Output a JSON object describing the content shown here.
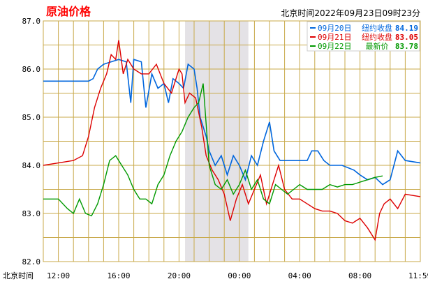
{
  "title": "原油价格",
  "timestamp": "北京时间2022年09月23日09时23分",
  "x_axis_prefix": "北京时间",
  "chart_data": {
    "type": "line",
    "ylim": [
      82.0,
      87.0
    ],
    "y_ticks": [
      "87.0",
      "86.0",
      "85.0",
      "84.0",
      "83.0",
      "82.0"
    ],
    "x_range_hours": [
      11.0,
      24.0
    ],
    "x_ticks": [
      {
        "label": "12:00",
        "t": 0.0
      },
      {
        "label": "16:00",
        "t": 4.0
      },
      {
        "label": "20:00",
        "t": 8.0
      },
      {
        "label": "00:00",
        "t": 12.0
      },
      {
        "label": "04:00",
        "t": 16.0
      },
      {
        "label": "08:00",
        "t": 20.0
      },
      {
        "label": "11:59",
        "t": 23.98
      }
    ],
    "shaded_region_hours": [
      8.4,
      12.6
    ],
    "grid": true,
    "legend": [
      {
        "date": "09月20日",
        "label": "纽约收盘",
        "value": "84.19",
        "color": "#0066dd"
      },
      {
        "date": "09月21日",
        "label": "纽约收盘",
        "value": "83.05",
        "color": "#dd0000"
      },
      {
        "date": "09月22日",
        "label": "最新价",
        "value": "83.78",
        "color": "#009900"
      }
    ],
    "series": [
      {
        "color": "#0066dd",
        "points": [
          [
            -1,
            85.75
          ],
          [
            1.2,
            85.75
          ],
          [
            2,
            85.75
          ],
          [
            2.3,
            85.8
          ],
          [
            2.6,
            86.0
          ],
          [
            3,
            86.1
          ],
          [
            3.5,
            86.15
          ],
          [
            4,
            86.2
          ],
          [
            4.5,
            86.15
          ],
          [
            4.8,
            85.3
          ],
          [
            5.0,
            86.2
          ],
          [
            5.5,
            86.15
          ],
          [
            5.8,
            85.2
          ],
          [
            6.2,
            85.9
          ],
          [
            6.6,
            85.6
          ],
          [
            7,
            85.7
          ],
          [
            7.3,
            85.3
          ],
          [
            7.6,
            85.8
          ],
          [
            8,
            85.7
          ],
          [
            8.3,
            85.6
          ],
          [
            8.6,
            86.1
          ],
          [
            9.0,
            86.0
          ],
          [
            9.2,
            85.6
          ],
          [
            9.4,
            85.0
          ],
          [
            9.6,
            84.8
          ],
          [
            9.8,
            84.6
          ],
          [
            10.0,
            84.3
          ],
          [
            10.4,
            84.0
          ],
          [
            10.8,
            84.2
          ],
          [
            11.2,
            83.8
          ],
          [
            11.6,
            84.2
          ],
          [
            12.0,
            84.0
          ],
          [
            12.4,
            83.7
          ],
          [
            12.8,
            84.2
          ],
          [
            13.2,
            84.0
          ],
          [
            13.6,
            84.5
          ],
          [
            14.0,
            84.9
          ],
          [
            14.3,
            84.3
          ],
          [
            14.7,
            84.1
          ],
          [
            15.5,
            84.1
          ],
          [
            16,
            84.1
          ],
          [
            16.5,
            84.1
          ],
          [
            16.8,
            84.3
          ],
          [
            17.2,
            84.3
          ],
          [
            17.6,
            84.1
          ],
          [
            18.0,
            84.0
          ],
          [
            18.4,
            84.0
          ],
          [
            18.8,
            84.0
          ],
          [
            19.2,
            83.95
          ],
          [
            19.6,
            83.9
          ],
          [
            20.0,
            83.8
          ],
          [
            20.5,
            83.7
          ],
          [
            21.0,
            83.75
          ],
          [
            21.5,
            83.6
          ],
          [
            22.0,
            83.7
          ],
          [
            22.5,
            84.3
          ],
          [
            23.0,
            84.1
          ],
          [
            24,
            84.05
          ]
        ]
      },
      {
        "color": "#dd0000",
        "points": [
          [
            -1,
            84.0
          ],
          [
            0,
            84.05
          ],
          [
            1,
            84.1
          ],
          [
            1.6,
            84.2
          ],
          [
            2.0,
            84.6
          ],
          [
            2.4,
            85.2
          ],
          [
            2.8,
            85.6
          ],
          [
            3.2,
            85.9
          ],
          [
            3.5,
            86.3
          ],
          [
            3.8,
            86.2
          ],
          [
            4.0,
            86.6
          ],
          [
            4.3,
            85.9
          ],
          [
            4.6,
            86.2
          ],
          [
            5.0,
            86.0
          ],
          [
            5.5,
            85.9
          ],
          [
            6.0,
            85.9
          ],
          [
            6.5,
            86.1
          ],
          [
            7.0,
            85.7
          ],
          [
            7.5,
            85.5
          ],
          [
            8.0,
            86.0
          ],
          [
            8.2,
            85.9
          ],
          [
            8.4,
            85.3
          ],
          [
            8.7,
            85.5
          ],
          [
            9.1,
            85.4
          ],
          [
            9.5,
            84.8
          ],
          [
            9.8,
            84.2
          ],
          [
            10.2,
            83.9
          ],
          [
            10.6,
            83.7
          ],
          [
            11.0,
            83.4
          ],
          [
            11.4,
            82.85
          ],
          [
            11.8,
            83.3
          ],
          [
            12.2,
            83.6
          ],
          [
            12.6,
            83.2
          ],
          [
            13.0,
            83.5
          ],
          [
            13.4,
            83.8
          ],
          [
            13.8,
            83.2
          ],
          [
            14.2,
            83.6
          ],
          [
            14.6,
            84.0
          ],
          [
            15.0,
            83.5
          ],
          [
            15.5,
            83.3
          ],
          [
            16.0,
            83.3
          ],
          [
            16.5,
            83.2
          ],
          [
            17.0,
            83.1
          ],
          [
            17.5,
            83.05
          ],
          [
            18.0,
            83.05
          ],
          [
            18.5,
            83.0
          ],
          [
            19.0,
            82.85
          ],
          [
            19.5,
            82.8
          ],
          [
            20.0,
            82.9
          ],
          [
            20.5,
            82.7
          ],
          [
            21.0,
            82.45
          ],
          [
            21.3,
            83.0
          ],
          [
            21.6,
            83.2
          ],
          [
            22.0,
            83.3
          ],
          [
            22.5,
            83.1
          ],
          [
            23.0,
            83.4
          ],
          [
            24,
            83.35
          ]
        ]
      },
      {
        "color": "#009900",
        "points": [
          [
            -1,
            83.3
          ],
          [
            0,
            83.3
          ],
          [
            0.6,
            83.1
          ],
          [
            1.0,
            83.0
          ],
          [
            1.4,
            83.3
          ],
          [
            1.8,
            83.0
          ],
          [
            2.2,
            82.95
          ],
          [
            2.6,
            83.2
          ],
          [
            3.0,
            83.6
          ],
          [
            3.4,
            84.1
          ],
          [
            3.8,
            84.2
          ],
          [
            4.2,
            84.0
          ],
          [
            4.6,
            83.8
          ],
          [
            5.0,
            83.5
          ],
          [
            5.4,
            83.3
          ],
          [
            5.8,
            83.3
          ],
          [
            6.2,
            83.2
          ],
          [
            6.6,
            83.6
          ],
          [
            7.0,
            83.8
          ],
          [
            7.4,
            84.2
          ],
          [
            7.8,
            84.5
          ],
          [
            8.2,
            84.7
          ],
          [
            8.6,
            85.0
          ],
          [
            9.0,
            85.2
          ],
          [
            9.3,
            85.3
          ],
          [
            9.6,
            85.7
          ],
          [
            10.0,
            84.0
          ],
          [
            10.4,
            83.6
          ],
          [
            10.8,
            83.5
          ],
          [
            11.2,
            83.7
          ],
          [
            11.6,
            83.4
          ],
          [
            12.0,
            83.6
          ],
          [
            12.4,
            83.9
          ],
          [
            12.8,
            83.5
          ],
          [
            13.2,
            83.7
          ],
          [
            13.6,
            83.3
          ],
          [
            14.0,
            83.2
          ],
          [
            14.4,
            83.6
          ],
          [
            14.8,
            83.5
          ],
          [
            15.2,
            83.4
          ],
          [
            15.6,
            83.5
          ],
          [
            16.0,
            83.6
          ],
          [
            16.5,
            83.5
          ],
          [
            17.0,
            83.5
          ],
          [
            17.5,
            83.5
          ],
          [
            18.0,
            83.6
          ],
          [
            18.5,
            83.55
          ],
          [
            19.0,
            83.6
          ],
          [
            19.5,
            83.6
          ],
          [
            20.0,
            83.65
          ],
          [
            20.5,
            83.7
          ],
          [
            21.0,
            83.75
          ],
          [
            21.5,
            83.78
          ]
        ]
      }
    ]
  }
}
